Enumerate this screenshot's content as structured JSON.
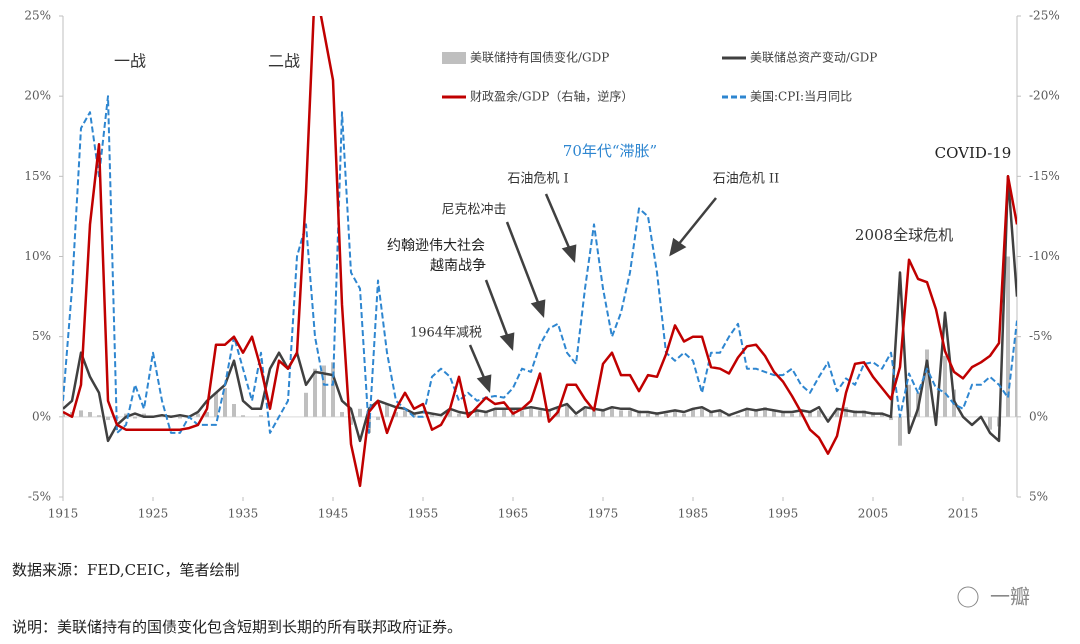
{
  "chart_data": {
    "type": "combo",
    "x": [
      1915,
      1916,
      1917,
      1918,
      1919,
      1920,
      1921,
      1922,
      1923,
      1924,
      1925,
      1926,
      1927,
      1928,
      1929,
      1930,
      1931,
      1932,
      1933,
      1934,
      1935,
      1936,
      1937,
      1938,
      1939,
      1940,
      1941,
      1942,
      1943,
      1944,
      1945,
      1946,
      1947,
      1948,
      1949,
      1950,
      1951,
      1952,
      1953,
      1954,
      1955,
      1956,
      1957,
      1958,
      1959,
      1960,
      1961,
      1962,
      1963,
      1964,
      1965,
      1966,
      1967,
      1968,
      1969,
      1970,
      1971,
      1972,
      1973,
      1974,
      1975,
      1976,
      1977,
      1978,
      1979,
      1980,
      1981,
      1982,
      1983,
      1984,
      1985,
      1986,
      1987,
      1988,
      1989,
      1990,
      1991,
      1992,
      1993,
      1994,
      1995,
      1996,
      1997,
      1998,
      1999,
      2000,
      2001,
      2002,
      2003,
      2004,
      2005,
      2006,
      2007,
      2008,
      2009,
      2010,
      2011,
      2012,
      2013,
      2014,
      2015,
      2016,
      2017,
      2018,
      2019,
      2020,
      2021
    ],
    "series": [
      {
        "name": "美联储持有国债变化/GDP",
        "color": "#bfbfbf",
        "style": "bar",
        "axis": "y",
        "values": [
          0.2,
          0.3,
          0.4,
          0.3,
          0.1,
          -0.2,
          -0.1,
          0.2,
          -0.1,
          0.2,
          0,
          0,
          0.1,
          -0.1,
          0,
          0.2,
          0.3,
          1.5,
          1.8,
          0.8,
          0.1,
          0,
          0.1,
          0,
          0,
          0,
          0,
          1.5,
          3,
          3.2,
          3.4,
          0.3,
          -0.5,
          0.5,
          -1,
          -0.2,
          0.8,
          0.3,
          0.4,
          0.2,
          0,
          0.1,
          0,
          0.5,
          0.2,
          0,
          0.4,
          0.3,
          0.5,
          0.5,
          0.5,
          0.4,
          0.6,
          0.4,
          0.4,
          0.5,
          0.8,
          0.1,
          0.5,
          0.4,
          0.5,
          0.6,
          0.4,
          0.4,
          0.4,
          0.2,
          0.3,
          0.2,
          0.4,
          0.2,
          0.5,
          0.6,
          0.3,
          0.4,
          0.1,
          0.1,
          0.5,
          0.4,
          0.6,
          0.4,
          0.3,
          0.2,
          0.4,
          0.3,
          0.4,
          0,
          0.4,
          0.6,
          0.4,
          0.4,
          0.3,
          0.2,
          -0.2,
          -1.8,
          2,
          1.5,
          4.2,
          0,
          3.8,
          1.7,
          0,
          0,
          0,
          -0.8,
          -0.6,
          10,
          5
        ]
      },
      {
        "name": "美联储总资产变动/GDP",
        "color": "#404040",
        "style": "line",
        "axis": "y",
        "values": [
          0.5,
          1,
          4,
          2.5,
          1.5,
          -1.5,
          -0.5,
          0,
          0.2,
          0,
          0,
          0.1,
          0,
          0.1,
          0,
          0.3,
          1,
          1.5,
          2,
          3.5,
          1,
          0.5,
          0.5,
          3,
          4,
          3,
          4,
          2,
          2.8,
          2.7,
          2.6,
          1,
          0.5,
          -1.5,
          0.5,
          1,
          0.8,
          0.6,
          0.5,
          0.2,
          0.3,
          0.2,
          0.1,
          0.5,
          0.3,
          0.2,
          0.4,
          0.3,
          0.5,
          0.5,
          0.5,
          0.5,
          0.6,
          0.5,
          0.4,
          0.6,
          0.8,
          0.2,
          0.6,
          0.5,
          0.4,
          0.6,
          0.5,
          0.5,
          0.3,
          0.3,
          0.2,
          0.3,
          0.4,
          0.3,
          0.5,
          0.6,
          0.3,
          0.4,
          0.1,
          0.3,
          0.5,
          0.4,
          0.5,
          0.4,
          0.3,
          0.3,
          0.4,
          0.3,
          0.6,
          -0.3,
          0.5,
          0.4,
          0.3,
          0.3,
          0.2,
          0.2,
          0,
          9,
          -1,
          0.5,
          3.5,
          -0.5,
          6.5,
          1,
          0,
          -0.5,
          0,
          -1,
          -1.5,
          15,
          7.5
        ]
      },
      {
        "name": "财政盈余/GDP（右轴，逆序）",
        "color": "#c00000",
        "style": "line",
        "axis": "y2",
        "values": [
          -0.3,
          0,
          -2,
          -12,
          -17,
          -1,
          0.5,
          0.8,
          0.8,
          0.8,
          0.8,
          0.8,
          0.8,
          0.8,
          0.7,
          0.5,
          -0.5,
          -4.5,
          -4.5,
          -5,
          -4,
          -5,
          -3,
          -0.5,
          -3.5,
          -3,
          -4,
          -14,
          -27,
          -24,
          -21,
          -7,
          1.7,
          4.3,
          -0.3,
          -1,
          1,
          -0.5,
          -1.5,
          -0.5,
          -0.8,
          0.8,
          0.5,
          -0.5,
          -2.5,
          0,
          -0.6,
          -1.2,
          -0.8,
          -0.9,
          -0.2,
          -0.5,
          -1,
          -2.7,
          0.3,
          -0.3,
          -2,
          -2,
          -1.1,
          -0.4,
          -3.3,
          -4,
          -2.6,
          -2.6,
          -1.6,
          -2.6,
          -2.5,
          -3.9,
          -5.7,
          -4.7,
          -5,
          -5,
          -3.1,
          -3,
          -2.7,
          -3.7,
          -4.4,
          -4.5,
          -3.8,
          -2.8,
          -2.2,
          -1.3,
          -0.3,
          0.8,
          1.3,
          2.3,
          1.2,
          -1.5,
          -3.3,
          -3.4,
          -2.5,
          -1.8,
          -1.1,
          -3.1,
          -9.8,
          -8.6,
          -8.4,
          -6.7,
          -4.1,
          -2.8,
          -2.4,
          -3.1,
          -3.4,
          -3.8,
          -4.6,
          -15,
          -12
        ]
      },
      {
        "name": "美国:CPI:当月同比",
        "color": "#2e86d0",
        "style": "dashed",
        "axis": "y",
        "values": [
          1,
          8,
          18,
          19,
          15,
          20,
          -1,
          -0.5,
          2,
          0.5,
          4,
          1,
          -1,
          -1,
          0,
          -0.5,
          -0.5,
          -0.5,
          2,
          5,
          3,
          1,
          4,
          -1,
          0,
          1,
          10,
          12,
          5,
          2,
          2,
          19,
          9,
          8,
          -1,
          8.5,
          4,
          1,
          0.5,
          0,
          0,
          2.5,
          3,
          2.5,
          1,
          1.5,
          1,
          1.2,
          1.3,
          1.2,
          1.8,
          3,
          2.8,
          4.5,
          5.5,
          5.8,
          4,
          3.3,
          8,
          12,
          8,
          5,
          6.5,
          9,
          13,
          12.5,
          9,
          4,
          3.5,
          4,
          3.5,
          1.5,
          4,
          4,
          5,
          5.8,
          3,
          3,
          2.8,
          2.6,
          2.6,
          3,
          2,
          1.5,
          2.5,
          3.4,
          1.6,
          2.4,
          2,
          3.3,
          3.4,
          3,
          4,
          0,
          2.7,
          1.5,
          3,
          1.8,
          1.5,
          0.8,
          0.5,
          2,
          2,
          2.5,
          2,
          1.2,
          6
        ]
      }
    ],
    "xlim": [
      1915,
      2021
    ],
    "xticks": [
      1915,
      1925,
      1935,
      1945,
      1955,
      1965,
      1975,
      1985,
      1995,
      2005,
      2015
    ],
    "ylim": [
      -5,
      25
    ],
    "yticks": [
      {
        "value": -5,
        "label": "-5%"
      },
      {
        "value": 0,
        "label": "0%"
      },
      {
        "value": 5,
        "label": "5%"
      },
      {
        "value": 10,
        "label": "10%"
      },
      {
        "value": 15,
        "label": "15%"
      },
      {
        "value": 20,
        "label": "20%"
      },
      {
        "value": 25,
        "label": "25%"
      }
    ],
    "y2lim": [
      5,
      -25
    ],
    "y2ticks": [
      {
        "value": 5,
        "label": "5%"
      },
      {
        "value": 0,
        "label": "0%"
      },
      {
        "value": -5,
        "label": "-5%"
      },
      {
        "value": -10,
        "label": "-10%"
      },
      {
        "value": -15,
        "label": "-15%"
      },
      {
        "value": -20,
        "label": "-20%"
      },
      {
        "value": -25,
        "label": "-25%"
      }
    ],
    "annotations": [
      "一战",
      "二战",
      "70年代“滞胀”",
      "石油危机 I",
      "石油危机 II",
      "尼克松冲击",
      "约翰逊伟大社会",
      "越南战争",
      "1964年减税",
      "2008全球危机",
      "COVID-19"
    ],
    "source": "数据来源：FED,CEIC，笔者绘制",
    "note": "说明：美联储持有的国债变化包含短期到长期的所有联邦政府证券。",
    "watermark": "一瓣"
  }
}
